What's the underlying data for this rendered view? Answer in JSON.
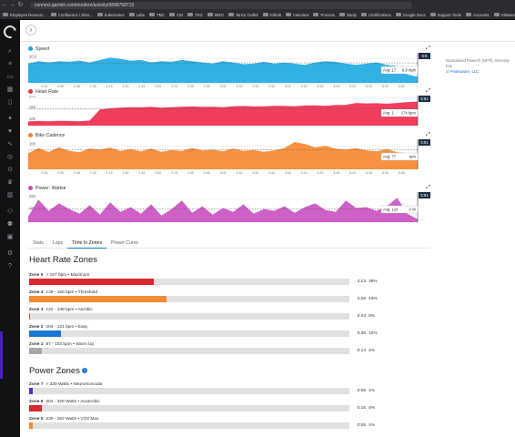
{
  "browser": {
    "url": "connect.garmin.com/modern/activity/9848768710",
    "bookmarks": [
      "Employee Resourc...",
      "Confluence / Sher...",
      "Kubernetes",
      "Labs",
      "TMC",
      "CM",
      "TKG",
      "MRO",
      "Tanzu Toolkit",
      "Github",
      "Interview",
      "Process",
      "Study",
      "Certifications",
      "Google Docs",
      "Support Tools",
      "Accounts",
      "VMware"
    ]
  },
  "note": {
    "line1": "Normalized Power® (NP®), Intensity Fac",
    "line2": "of",
    "link": "Peaksware, LLC"
  },
  "charts": [
    {
      "id": "speed",
      "title": "Speed",
      "color": "#1ba9e1",
      "marker": "5:9",
      "avg_label": "Avg: 17",
      "value_label": "6.9 mph",
      "y_ticks": [
        "20.0",
        "10.0",
        "0.0"
      ],
      "y_range": [
        0,
        25
      ],
      "x_ticks": [
        "0:15",
        "0:30",
        "0:45",
        "1:00",
        "1:15",
        "1:30",
        "1:45",
        "2:00",
        "2:15",
        "2:30",
        "2:45",
        "3:00",
        "3:15",
        "3:30",
        "3:45",
        "4:00",
        "4:15",
        "4:30",
        "4:45",
        "5:00",
        "5:15",
        "5:30",
        "5:45"
      ],
      "values": [
        16,
        18,
        17,
        18,
        17.5,
        18.5,
        17,
        19,
        21,
        20,
        18.5,
        19,
        17,
        18,
        17.5,
        19,
        18,
        17,
        16,
        18,
        17,
        15.5,
        16,
        17.5,
        16,
        17,
        16,
        15,
        17,
        18,
        17.5,
        16,
        15,
        16,
        17,
        15,
        14,
        7,
        5
      ]
    },
    {
      "id": "heart-rate",
      "title": "Heart Rate",
      "color": "#f0284c",
      "marker": "5:91",
      "avg_label": "Avg: 1",
      "value_label": "174 bpm",
      "y_ticks": [
        "200",
        "150",
        "100"
      ],
      "y_range": [
        80,
        210
      ],
      "x_ticks": [],
      "values": [
        98,
        100,
        99,
        101,
        100,
        99,
        102,
        150,
        155,
        158,
        160,
        159,
        161,
        158,
        160,
        162,
        163,
        161,
        162,
        160,
        164,
        165,
        163,
        164,
        166,
        165,
        164,
        167,
        168,
        166,
        169,
        170,
        178,
        176,
        177,
        175,
        178,
        182,
        184
      ]
    },
    {
      "id": "bike-cadence",
      "title": "Bike Cadence",
      "color": "#f7862d",
      "marker": "5:91",
      "avg_label": "Avg: 77",
      "value_label": "rpm",
      "y_ticks": [
        "100",
        "50"
      ],
      "y_range": [
        0,
        130
      ],
      "x_ticks": [
        "0:15",
        "0:30",
        "0:45",
        "1:00",
        "1:15",
        "1:30",
        "1:45",
        "2:00",
        "2:15",
        "2:30",
        "2:45",
        "3:00",
        "3:15",
        "3:30",
        "3:45",
        "4:00",
        "4:15",
        "4:30",
        "4:45",
        "5:00",
        "5:15",
        "5:30",
        "5:45"
      ],
      "values": [
        70,
        92,
        75,
        95,
        80,
        74,
        90,
        85,
        94,
        80,
        88,
        78,
        90,
        76,
        84,
        80,
        92,
        82,
        86,
        78,
        90,
        80,
        84,
        76,
        82,
        92,
        118,
        110,
        95,
        102,
        90,
        86,
        92,
        82,
        78,
        88,
        74,
        70,
        66
      ]
    },
    {
      "id": "power",
      "title": "Power: Watts",
      "color": "#c94fc2",
      "marker": "5:91",
      "avg_label": "Avg: 124",
      "value_label": "0 W",
      "y_ticks": [
        "250",
        "125",
        "0"
      ],
      "y_range": [
        0,
        320
      ],
      "x_ticks": [],
      "values": [
        60,
        240,
        120,
        200,
        140,
        90,
        180,
        80,
        210,
        110,
        160,
        90,
        190,
        70,
        140,
        230,
        100,
        170,
        80,
        150,
        110,
        190,
        90,
        140,
        120,
        170,
        100,
        160,
        200,
        130,
        110,
        230,
        150,
        160,
        120,
        170,
        260,
        90,
        30
      ]
    }
  ],
  "tabs": [
    {
      "label": "Stats",
      "active": false
    },
    {
      "label": "Laps",
      "active": false
    },
    {
      "label": "Time In Zones",
      "active": true
    },
    {
      "label": "Power Curve",
      "active": false
    }
  ],
  "heart_rate_zones": {
    "title": "Heart Rate Zones",
    "zones": [
      {
        "name": "Zone 5",
        "range": "> 157 bpm • Maximum",
        "time": "2:13",
        "pct": "39%",
        "fraction": 0.39,
        "color": "#d9272e"
      },
      {
        "name": "Zone 4",
        "range": "139 - 156 bpm • Threshold",
        "time": "2:26",
        "pct": "43%",
        "fraction": 0.43,
        "color": "#f18a32"
      },
      {
        "name": "Zone 3",
        "range": "122 - 138 bpm • Aerobic",
        "time": "0:03",
        "pct": "0%",
        "fraction": 0.0,
        "color": "#2ba84a"
      },
      {
        "name": "Zone 2",
        "range": "104 - 121 bpm • Easy",
        "time": "0:36",
        "pct": "10%",
        "fraction": 0.1,
        "color": "#1876cf"
      },
      {
        "name": "Zone 1",
        "range": "87 - 103 bpm • Warm Up",
        "time": "0:14",
        "pct": "4%",
        "fraction": 0.04,
        "color": "#a7a7a7"
      }
    ]
  },
  "power_zones": {
    "title": "Power Zones",
    "zones": [
      {
        "name": "Zone 7",
        "range": "> 329 Watts • Neuromuscular",
        "time": "0:06",
        "pct": "1%",
        "fraction": 0.01,
        "color": "#5a2bd0"
      },
      {
        "name": "Zone 6",
        "range": "263 - 328 Watts • Anaerobic",
        "time": "0:16",
        "pct": "4%",
        "fraction": 0.04,
        "color": "#d9272e"
      },
      {
        "name": "Zone 5",
        "range": "230 - 262 Watts • VO2 Max",
        "time": "0:05",
        "pct": "1%",
        "fraction": 0.01,
        "color": "#f18a32"
      }
    ]
  }
}
